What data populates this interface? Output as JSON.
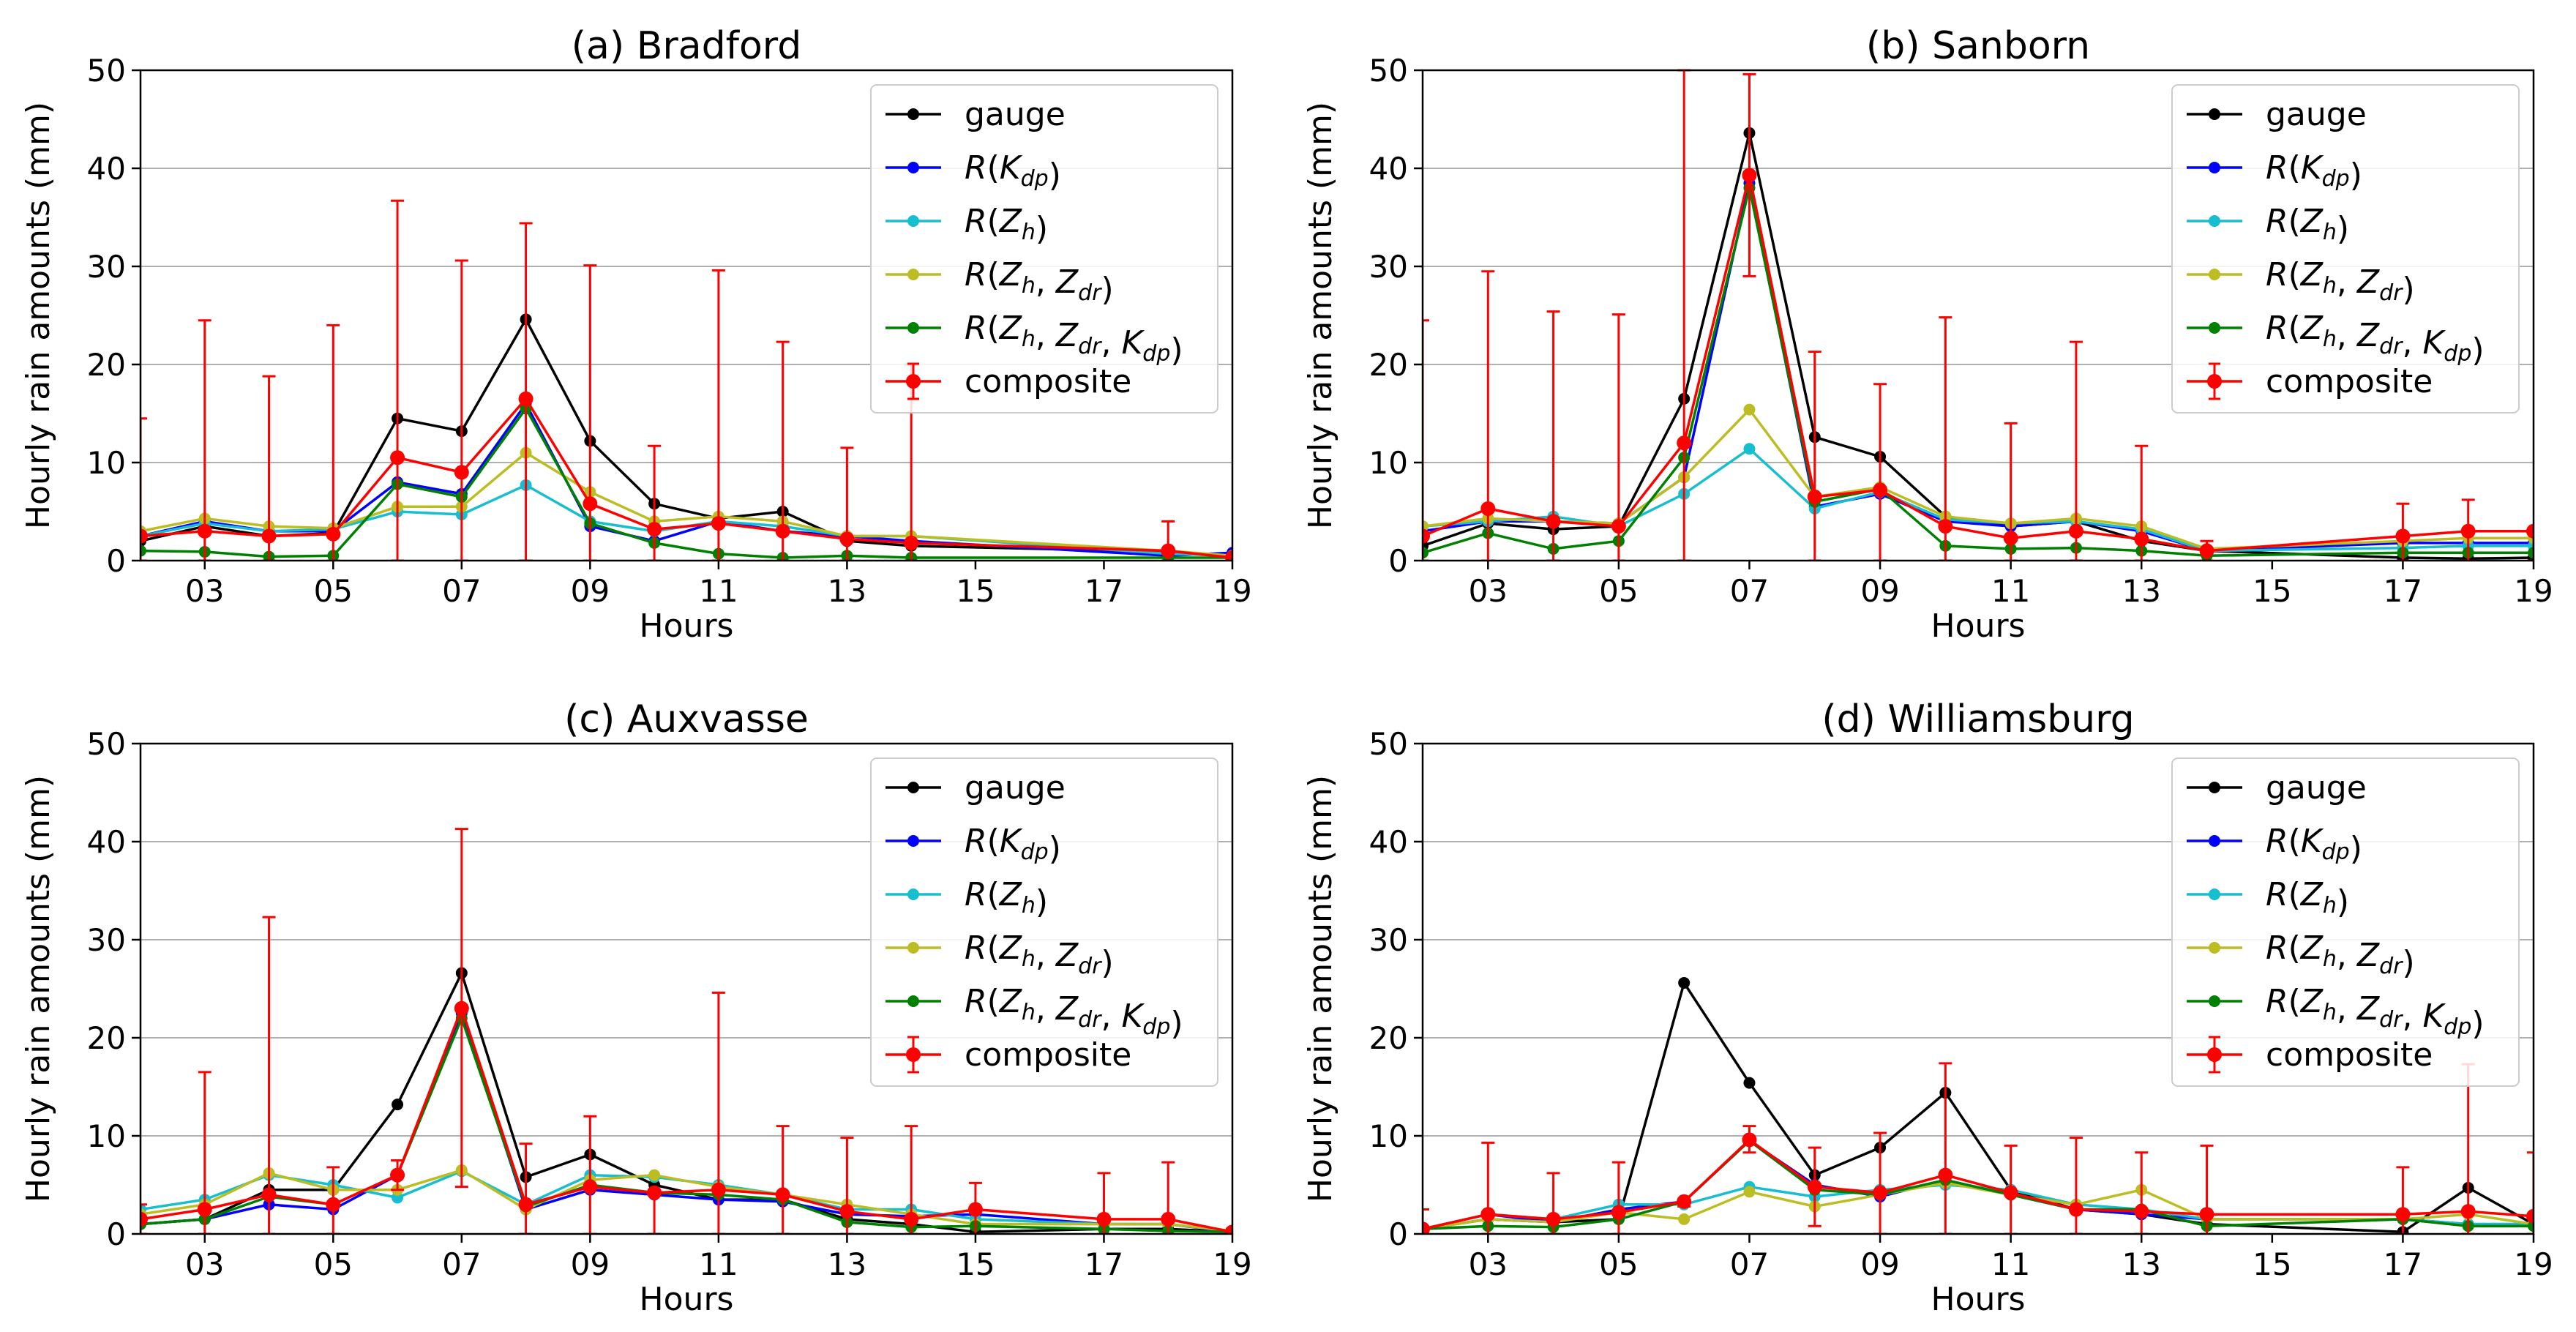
{
  "series_meta": [
    {
      "key": "gauge",
      "label": "gauge",
      "color": "#000000"
    },
    {
      "key": "kdp",
      "label": "R(K_dp)",
      "color": "#0000ff"
    },
    {
      "key": "zh",
      "label": "R(Z_h)",
      "color": "#17becf"
    },
    {
      "key": "zhzdr",
      "label": "R(Z_h, Z_dr)",
      "color": "#bcbd22"
    },
    {
      "key": "zhzdrkdp",
      "label": "R(Z_h, Z_dr, K_dp)",
      "color": "#008000"
    },
    {
      "key": "composite",
      "label": "composite",
      "color": "#ff0000",
      "errorbars": true
    }
  ],
  "legend_text": {
    "gauge": "gauge",
    "kdp": {
      "R": "R",
      "sym1": "K",
      "sub1": "dp"
    },
    "zh": {
      "R": "R",
      "sym1": "Z",
      "sub1": "h"
    },
    "zhzdr": {
      "R": "R",
      "sym1": "Z",
      "sub1": "h",
      "sym2": "Z",
      "sub2": "dr"
    },
    "zhzdrkdp": {
      "R": "R",
      "sym1": "Z",
      "sub1": "h",
      "sym2": "Z",
      "sub2": "dr",
      "sym3": "K",
      "sub3": "dp"
    },
    "composite": "composite"
  },
  "chart_data": [
    {
      "type": "line",
      "title": "(a)  Bradford",
      "xlabel": "Hours",
      "ylabel": "Hourly rain amounts (mm)",
      "xlim": [
        2,
        19
      ],
      "ylim": [
        0,
        50
      ],
      "xticks": [
        "03",
        "05",
        "07",
        "09",
        "11",
        "13",
        "15",
        "17",
        "19"
      ],
      "yticks": [
        "0",
        "10",
        "20",
        "30",
        "40",
        "50"
      ],
      "grid": "y",
      "legend": "top-right",
      "x": [
        2,
        3,
        4,
        5,
        6,
        7,
        8,
        9,
        10,
        11,
        12,
        13,
        14,
        18,
        19
      ],
      "series": {
        "gauge": [
          2.0,
          3.5,
          2.5,
          2.8,
          14.5,
          13.2,
          24.6,
          12.2,
          5.8,
          4.3,
          5.0,
          2.0,
          1.5,
          0.9,
          0.5
        ],
        "kdp": [
          2.5,
          4.0,
          3.0,
          3.0,
          8.0,
          6.8,
          16.0,
          3.5,
          2.0,
          4.0,
          3.0,
          2.5,
          2.0,
          0.5,
          0.8
        ],
        "zh": [
          2.5,
          3.8,
          3.0,
          3.2,
          5.0,
          4.7,
          7.7,
          4.0,
          3.0,
          4.0,
          3.5,
          2.5,
          2.5,
          0.7,
          0.5
        ],
        "zhzdr": [
          3.0,
          4.3,
          3.5,
          3.3,
          5.5,
          5.5,
          11.0,
          7.0,
          4.0,
          4.5,
          4.0,
          2.5,
          2.5,
          1.0,
          0.5
        ],
        "zhzdrkdp": [
          1.0,
          0.9,
          0.4,
          0.5,
          7.8,
          6.5,
          15.5,
          3.8,
          1.8,
          0.7,
          0.3,
          0.5,
          0.3,
          0.3,
          0.3
        ],
        "composite": [
          2.5,
          3.0,
          2.5,
          2.7,
          10.5,
          9.0,
          16.5,
          5.8,
          3.2,
          3.8,
          3.0,
          2.2,
          1.8,
          1.0,
          0.3
        ]
      },
      "composite_err": [
        [
          0,
          14.5
        ],
        [
          0,
          24.5
        ],
        [
          0,
          18.8
        ],
        [
          0,
          24.0
        ],
        [
          0,
          36.7
        ],
        [
          0,
          30.6
        ],
        [
          0,
          34.4
        ],
        [
          0,
          30.1
        ],
        [
          0,
          11.7
        ],
        [
          0,
          29.6
        ],
        [
          0,
          22.3
        ],
        [
          0,
          11.5
        ],
        [
          0,
          20.0
        ],
        [
          0,
          4.0
        ],
        [
          0,
          0.5
        ]
      ]
    },
    {
      "type": "line",
      "title": "(b)  Sanborn",
      "xlabel": "Hours",
      "ylabel": "Hourly rain amounts (mm)",
      "xlim": [
        2,
        19
      ],
      "ylim": [
        0,
        50
      ],
      "xticks": [
        "03",
        "05",
        "07",
        "09",
        "11",
        "13",
        "15",
        "17",
        "19"
      ],
      "yticks": [
        "0",
        "10",
        "20",
        "30",
        "40",
        "50"
      ],
      "grid": "y",
      "legend": "top-right",
      "x": [
        2,
        3,
        4,
        5,
        6,
        7,
        8,
        9,
        10,
        11,
        12,
        13,
        14,
        17,
        18,
        19
      ],
      "series": {
        "gauge": [
          1.5,
          3.8,
          3.2,
          3.5,
          16.5,
          43.6,
          12.6,
          10.6,
          4.5,
          3.5,
          4.0,
          2.0,
          1.0,
          0.3,
          0.2,
          0.3
        ],
        "kdp": [
          3.0,
          4.0,
          4.0,
          3.8,
          8.5,
          38.5,
          5.5,
          6.8,
          4.0,
          3.5,
          4.0,
          3.0,
          1.0,
          1.8,
          1.8,
          1.8
        ],
        "zh": [
          3.5,
          4.0,
          4.5,
          3.5,
          6.8,
          11.4,
          5.3,
          7.0,
          4.2,
          3.8,
          4.0,
          3.2,
          1.0,
          1.3,
          1.5,
          1.5
        ],
        "zhzdr": [
          3.5,
          4.3,
          4.0,
          3.8,
          8.5,
          15.4,
          6.5,
          7.5,
          4.5,
          3.8,
          4.3,
          3.5,
          1.2,
          2.0,
          2.3,
          2.3
        ],
        "zhzdrkdp": [
          0.8,
          2.8,
          1.2,
          2.0,
          10.5,
          38.0,
          6.0,
          7.3,
          1.5,
          1.2,
          1.3,
          1.0,
          0.5,
          0.8,
          0.8,
          0.8
        ],
        "composite": [
          2.5,
          5.3,
          4.0,
          3.5,
          12.0,
          39.3,
          6.5,
          7.2,
          3.5,
          2.3,
          3.0,
          2.2,
          1.0,
          2.5,
          3.0,
          3.0
        ]
      },
      "composite_err": [
        [
          0,
          24.5
        ],
        [
          0,
          29.5
        ],
        [
          0,
          25.4
        ],
        [
          0,
          25.1
        ],
        [
          0,
          50
        ],
        [
          29.0,
          49.6
        ],
        [
          0,
          21.3
        ],
        [
          0,
          18.0
        ],
        [
          0,
          24.8
        ],
        [
          0,
          14.0
        ],
        [
          0,
          22.3
        ],
        [
          0,
          11.7
        ],
        [
          0,
          2.0
        ],
        [
          0,
          5.8
        ],
        [
          0,
          6.2
        ],
        [
          0,
          3.0
        ]
      ]
    },
    {
      "type": "line",
      "title": "(c)  Auxvasse",
      "xlabel": "Hours",
      "ylabel": "Hourly rain amounts (mm)",
      "xlim": [
        2,
        19
      ],
      "ylim": [
        0,
        50
      ],
      "xticks": [
        "03",
        "05",
        "07",
        "09",
        "11",
        "13",
        "15",
        "17",
        "19"
      ],
      "yticks": [
        "0",
        "10",
        "20",
        "30",
        "40",
        "50"
      ],
      "grid": "y",
      "legend": "top-right",
      "x": [
        2,
        3,
        4,
        5,
        6,
        7,
        8,
        9,
        10,
        11,
        12,
        13,
        14,
        15,
        17,
        18,
        19
      ],
      "series": {
        "gauge": [
          1.0,
          1.5,
          4.5,
          4.5,
          13.2,
          26.6,
          5.8,
          8.1,
          5.0,
          3.5,
          3.5,
          1.5,
          1.0,
          0.2,
          0.5,
          0.5,
          0.2
        ],
        "kdp": [
          1.0,
          1.5,
          3.0,
          2.5,
          6.0,
          22.5,
          2.5,
          4.5,
          4.0,
          3.5,
          3.3,
          2.0,
          1.8,
          2.0,
          1.0,
          1.0,
          0.2
        ],
        "zh": [
          2.5,
          3.5,
          6.0,
          5.0,
          3.7,
          6.4,
          3.0,
          6.0,
          5.8,
          5.0,
          4.0,
          2.5,
          2.5,
          1.5,
          1.0,
          1.0,
          0.3
        ],
        "zhzdr": [
          2.0,
          3.0,
          6.2,
          4.5,
          4.5,
          6.5,
          2.5,
          5.5,
          6.0,
          4.8,
          4.0,
          3.0,
          2.0,
          1.0,
          1.0,
          1.0,
          0.3
        ],
        "zhzdrkdp": [
          1.0,
          1.5,
          3.8,
          3.0,
          6.0,
          22.0,
          2.8,
          5.0,
          4.2,
          4.0,
          3.5,
          1.2,
          0.7,
          0.8,
          0.5,
          0.3,
          0.2
        ],
        "composite": [
          1.5,
          2.5,
          4.0,
          3.0,
          6.0,
          23.0,
          3.0,
          4.8,
          4.2,
          4.5,
          4.0,
          2.3,
          1.5,
          2.5,
          1.5,
          1.5,
          0.2
        ]
      },
      "composite_err": [
        [
          0,
          3.0
        ],
        [
          0,
          16.5
        ],
        [
          0,
          32.3
        ],
        [
          0,
          6.8
        ],
        [
          4.5,
          7.5
        ],
        [
          4.8,
          41.3
        ],
        [
          0,
          9.2
        ],
        [
          0,
          12.0
        ],
        [
          0,
          4.5
        ],
        [
          0,
          24.6
        ],
        [
          0,
          11.0
        ],
        [
          0,
          9.8
        ],
        [
          0,
          11.0
        ],
        [
          0,
          5.2
        ],
        [
          0,
          6.2
        ],
        [
          0,
          7.3
        ],
        [
          0,
          0.5
        ]
      ]
    },
    {
      "type": "line",
      "title": "(d)  Williamsburg",
      "xlabel": "Hours",
      "ylabel": "Hourly rain amounts (mm)",
      "xlim": [
        2,
        19
      ],
      "ylim": [
        0,
        50
      ],
      "xticks": [
        "03",
        "05",
        "07",
        "09",
        "11",
        "13",
        "15",
        "17",
        "19"
      ],
      "yticks": [
        "0",
        "10",
        "20",
        "30",
        "40",
        "50"
      ],
      "grid": "y",
      "legend": "top-right",
      "x": [
        2,
        3,
        4,
        5,
        6,
        7,
        8,
        9,
        10,
        11,
        12,
        13,
        14,
        17,
        18,
        19
      ],
      "series": {
        "gauge": [
          0.5,
          1.5,
          1.2,
          1.5,
          25.6,
          15.4,
          6.0,
          8.8,
          14.4,
          4.5,
          2.5,
          2.0,
          1.0,
          0.2,
          4.7,
          1.0
        ],
        "kdp": [
          0.5,
          2.0,
          1.2,
          2.5,
          3.3,
          9.5,
          5.0,
          3.8,
          5.5,
          4.0,
          2.5,
          2.0,
          1.5,
          1.5,
          1.0,
          1.0
        ],
        "zh": [
          0.5,
          2.0,
          1.5,
          3.0,
          3.0,
          4.8,
          3.8,
          4.5,
          5.0,
          4.5,
          3.0,
          2.5,
          1.5,
          1.5,
          1.0,
          1.0
        ],
        "zhzdr": [
          0.5,
          1.5,
          1.2,
          2.2,
          1.5,
          4.3,
          2.8,
          4.0,
          5.2,
          4.0,
          3.0,
          4.5,
          1.5,
          1.5,
          2.0,
          1.0
        ],
        "zhzdrkdp": [
          0.5,
          0.8,
          0.7,
          1.5,
          3.3,
          9.5,
          4.5,
          4.0,
          5.5,
          4.0,
          2.5,
          2.5,
          0.8,
          1.5,
          0.8,
          0.8
        ],
        "composite": [
          0.5,
          2.0,
          1.5,
          2.2,
          3.3,
          9.6,
          4.8,
          4.2,
          6.0,
          4.2,
          2.5,
          2.3,
          2.0,
          2.0,
          2.3,
          1.8
        ]
      },
      "composite_err": [
        [
          0,
          2.5
        ],
        [
          0,
          9.3
        ],
        [
          0,
          6.2
        ],
        [
          0,
          7.3
        ],
        [
          2.8,
          3.5
        ],
        [
          8.3,
          11.0
        ],
        [
          0.8,
          8.8
        ],
        [
          0,
          10.3
        ],
        [
          0,
          17.4
        ],
        [
          0,
          9.0
        ],
        [
          0,
          9.8
        ],
        [
          0,
          8.3
        ],
        [
          0,
          9.0
        ],
        [
          0,
          6.8
        ],
        [
          0,
          17.3
        ],
        [
          0,
          8.3
        ]
      ]
    }
  ]
}
